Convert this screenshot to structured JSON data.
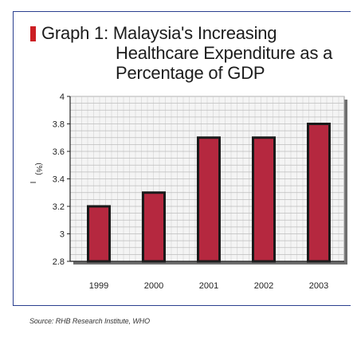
{
  "title": {
    "marker_color": "#cc1f24",
    "line1": "Graph 1: Malaysia's Increasing",
    "line2": "Healthcare Expenditure as a",
    "line3": "Percentage of GDP"
  },
  "source": "Source: RHB Research Institute, WHO",
  "chart_data": {
    "type": "bar",
    "title": "Graph 1: Malaysia's Increasing Healthcare Expenditure as a Percentage of GDP",
    "categories": [
      "1999",
      "2000",
      "2001",
      "2002",
      "2003"
    ],
    "values": [
      3.2,
      3.3,
      3.7,
      3.7,
      3.8
    ],
    "xlabel": "",
    "ylabel": "(%)",
    "ylim": [
      2.8,
      4.0
    ],
    "yticks": [
      "4",
      "3.8",
      "3.6",
      "3.4",
      "3.2",
      "3",
      "2.8"
    ],
    "ytick_values": [
      4.0,
      3.8,
      3.6,
      3.4,
      3.2,
      3.0,
      2.8
    ],
    "grid": true,
    "legend": "none",
    "colors": {
      "bar_fill": "#b5283f",
      "bar_edge": "#1a1a1a",
      "plot_bg": "#f4f4f4",
      "grid": "#bdbdbd",
      "frame": "#2a3f8f"
    }
  }
}
